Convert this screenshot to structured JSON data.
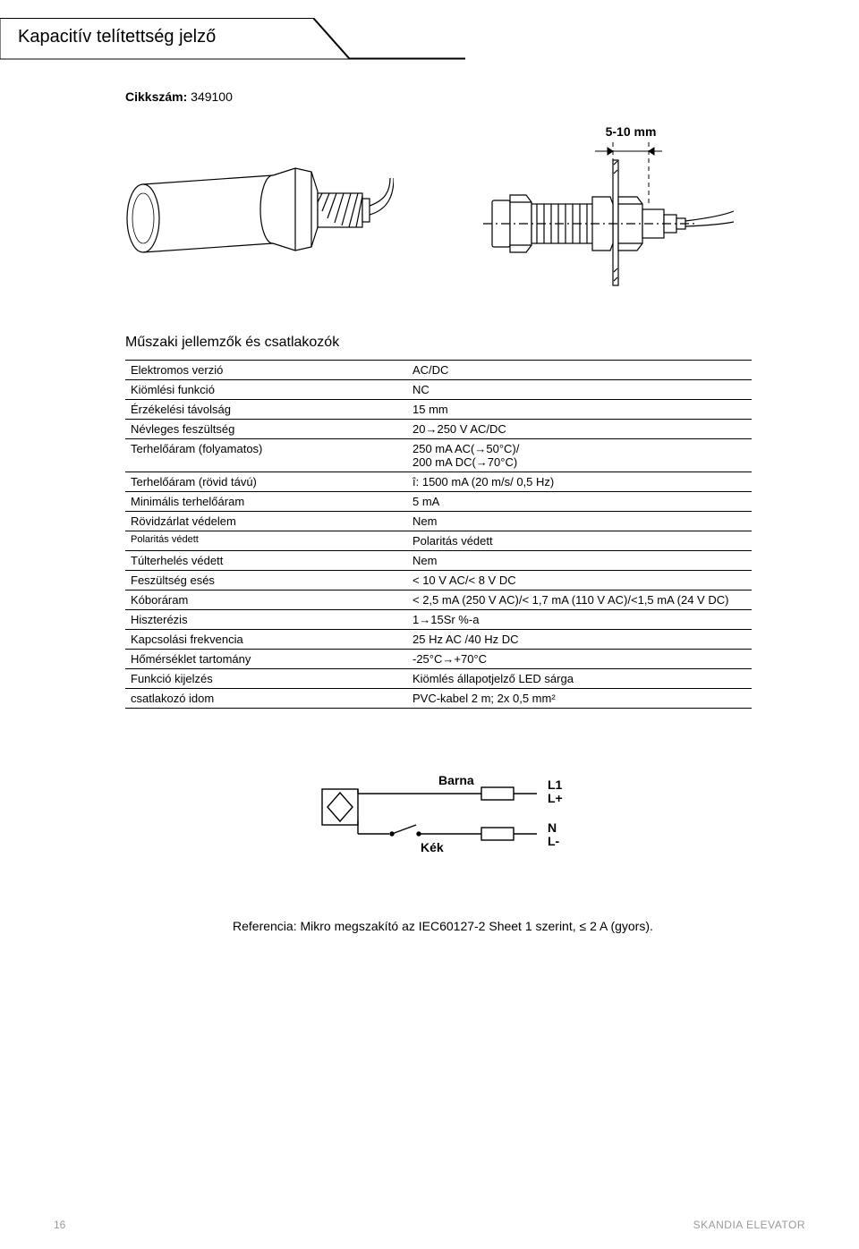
{
  "page_title": "Kapacitív telítettség jelző",
  "article_label": "Cikkszám:",
  "article_no": "349100",
  "dimension_label": "5-10 mm",
  "section_heading": "Műszaki jellemzők és csatlakozók",
  "spec_table": {
    "rows": [
      {
        "label": "Elektromos verzió",
        "value": "AC/DC"
      },
      {
        "label": "Kiömlési funkció",
        "value": "NC"
      },
      {
        "label": "Érzékelési távolság",
        "value": "15 mm"
      },
      {
        "label": "Névleges feszültség",
        "value": "20→250 V AC/DC"
      },
      {
        "label": "Terhelőáram (folyamatos)",
        "value": "250 mA AC(→50°C)/\n200 mA DC(→70°C)"
      },
      {
        "label": "Terhelőáram (rövid távú)",
        "value": "î: 1500 mA (20 m/s/ 0,5 Hz)"
      },
      {
        "label": "Minimális terhelőáram",
        "value": "5 mA"
      },
      {
        "label": "Rövidzárlat védelem",
        "value": "Nem"
      },
      {
        "label": "Polaritás védett",
        "value": "Polaritás védett"
      },
      {
        "label": "Túlterhelés védett",
        "value": "Nem"
      },
      {
        "label": "Feszültség esés",
        "value": "< 10 V AC/< 8 V DC"
      },
      {
        "label": "Kóboráram",
        "value": "< 2,5 mA (250 V AC)/< 1,7 mA (110 V AC)/<1,5 mA (24 V DC)"
      },
      {
        "label": "Hiszterézis",
        "value": "1→15Sr %-a"
      },
      {
        "label": "Kapcsolási frekvencia",
        "value": "25 Hz AC /40 Hz DC"
      },
      {
        "label": "Hőmérséklet tartomány",
        "value": "-25°C→+70°C"
      },
      {
        "label": "Funkció kijelzés",
        "value": "Kiömlés állapotjelző LED sárga"
      },
      {
        "label": "csatlakozó idom",
        "value": "PVC-kabel 2 m; 2x 0,5 mm²"
      }
    ]
  },
  "circuit": {
    "top_wire_label": "Barna",
    "bottom_wire_label": "Kék",
    "terminal_top1": "L1",
    "terminal_top2": "L+",
    "terminal_bot1": "N",
    "terminal_bot2": "L-"
  },
  "reference_text": "Referencia: Mikro megszakító az IEC60127-2 Sheet 1 szerint, ≤ 2 A (gyors).",
  "footer": {
    "page_number": "16",
    "brand": "SKANDIA ELEVATOR"
  },
  "colors": {
    "text": "#000000",
    "border": "#000000",
    "bg": "#ffffff",
    "footer": "#999999"
  }
}
